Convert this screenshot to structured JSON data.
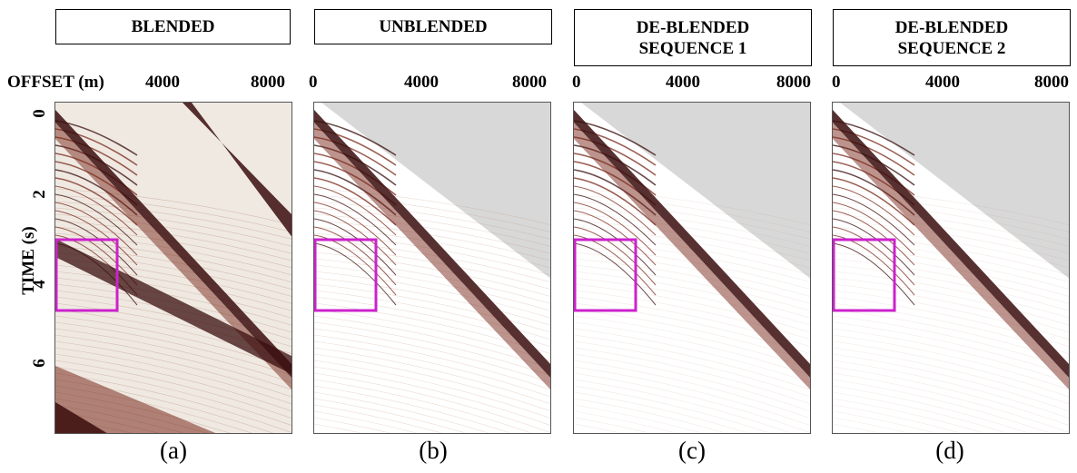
{
  "panels": [
    {
      "id": "a",
      "title": "BLENDED",
      "caption": "(a)",
      "ticks": [
        "4000",
        "8000"
      ]
    },
    {
      "id": "b",
      "title": "UNBLENDED",
      "caption": "(b)",
      "ticks": [
        "0",
        "4000",
        "8000"
      ]
    },
    {
      "id": "c",
      "title": "DE-BLENDED\nSEQUENCE 1",
      "caption": "(c)",
      "ticks": [
        "0",
        "4000",
        "8000"
      ]
    },
    {
      "id": "d",
      "title": "DE-BLENDED\nSEQUENCE 2",
      "caption": "(d)",
      "ticks": [
        "0",
        "4000",
        "8000"
      ]
    }
  ],
  "x_axis_label": "OFFSET (m)",
  "y_axis_label": "TIME (s)",
  "y_ticks": [
    "0",
    "2",
    "4",
    "6"
  ],
  "colors": {
    "highlight_box": "#cc22cc",
    "event_dark": "#3a0d0d",
    "event_mid": "#7a2a1c",
    "background_blended": "#efe9e2",
    "background_clean": "#d8d8d8"
  }
}
